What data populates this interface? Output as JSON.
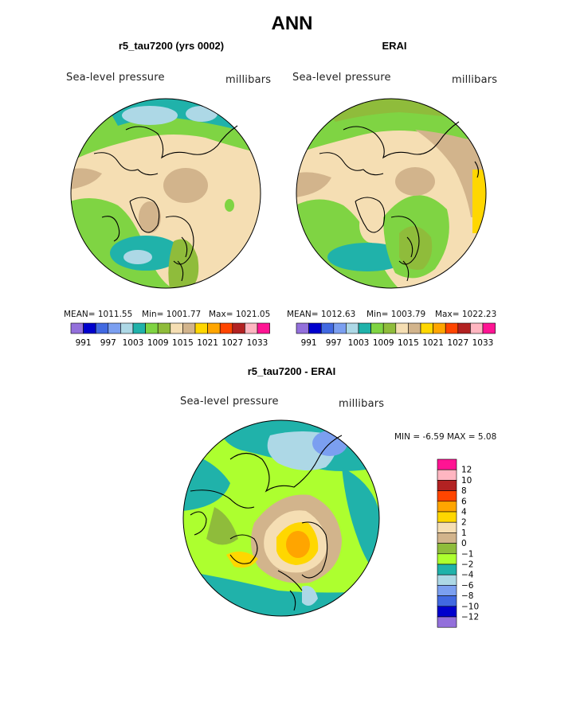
{
  "page": {
    "title": "ANN"
  },
  "panels": [
    {
      "title": "r5_tau7200 (yrs 0002)",
      "variable": "Sea-level pressure",
      "units": "millibars",
      "stats": {
        "mean": "MEAN= 1011.55",
        "min": "Min= 1001.77",
        "max": "Max= 1021.05"
      }
    },
    {
      "title": "ERAI",
      "variable": "Sea-level pressure",
      "units": "millibars",
      "stats": {
        "mean": "MEAN= 1012.63",
        "min": "Min= 1003.79",
        "max": "Max= 1022.23"
      }
    }
  ],
  "difference": {
    "title": "r5_tau7200 - ERAI",
    "variable": "Sea-level pressure",
    "units": "millibars",
    "minmax": "MIN =   -6.59  MAX =    5.08"
  },
  "abs_colorbar": {
    "colors": [
      "#9370db",
      "#0000cd",
      "#4169e1",
      "#7b9ff0",
      "#add8e6",
      "#20b2aa",
      "#7fd443",
      "#8fbc3b",
      "#f5deb3",
      "#d2b48c",
      "#ffd700",
      "#ffa500",
      "#ff4500",
      "#b22222",
      "#ffb6c1",
      "#ff1493"
    ],
    "labels": [
      "991",
      "997",
      "1003",
      "1009",
      "1015",
      "1021",
      "1027",
      "1033"
    ]
  },
  "diff_colorbar": {
    "colors": [
      "#9370db",
      "#0000cd",
      "#4169e1",
      "#7b9ff0",
      "#add8e6",
      "#20b2aa",
      "#adff2f",
      "#8fbc3b",
      "#d2b48c",
      "#f5deb3",
      "#ffd700",
      "#ffa500",
      "#ff4500",
      "#b22222",
      "#ffb6c1",
      "#ff1493"
    ],
    "labels": [
      "12",
      "10",
      "8",
      "6",
      "4",
      "2",
      "1",
      "0",
      "−1",
      "−2",
      "−4",
      "−6",
      "−8",
      "−10",
      "−12"
    ]
  }
}
